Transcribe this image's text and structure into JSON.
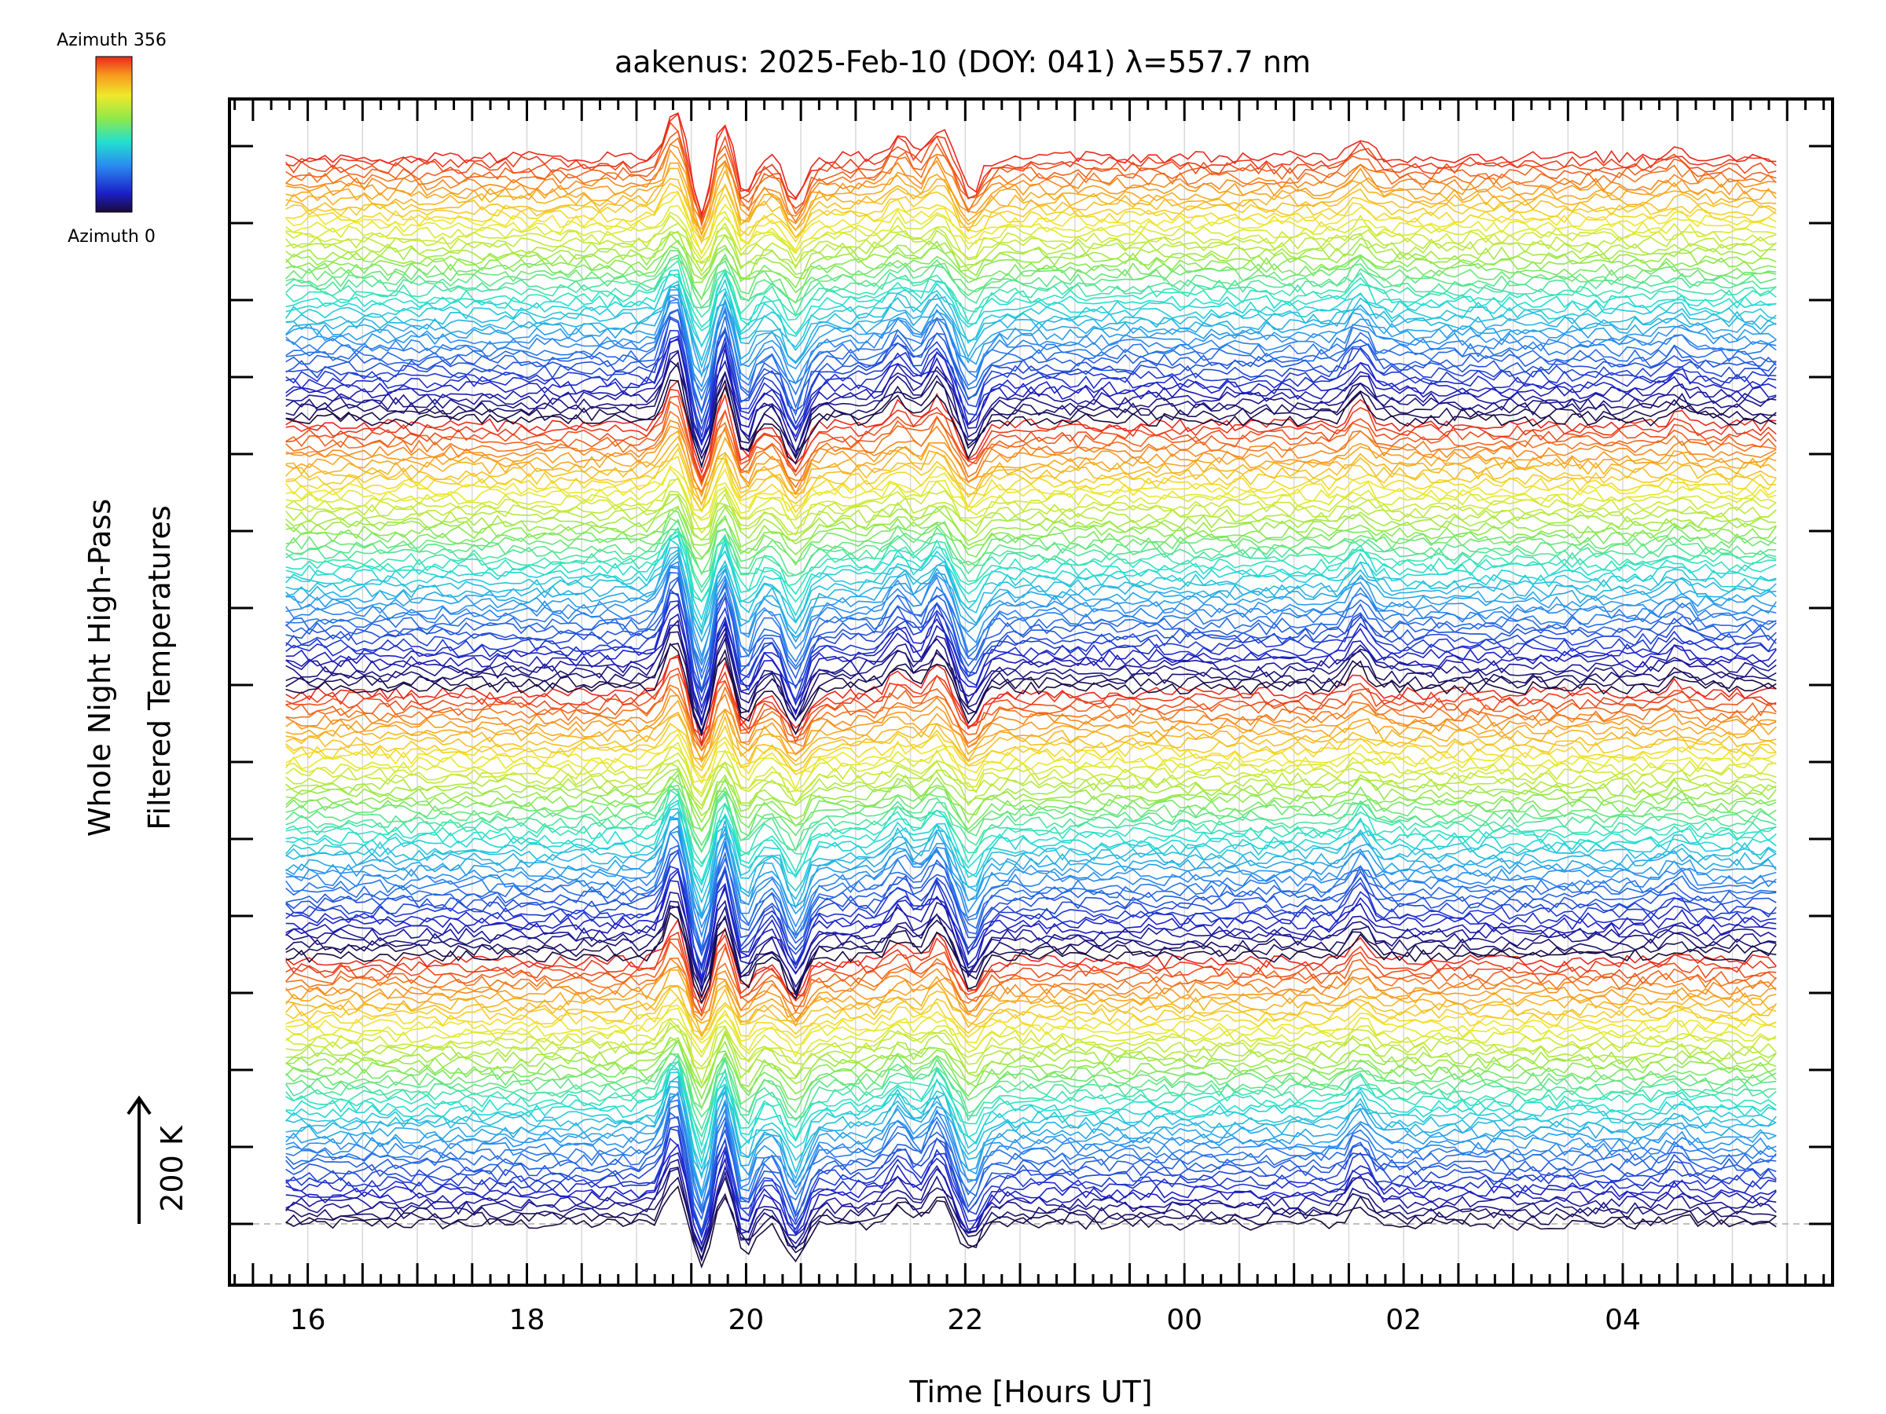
{
  "chart_data": {
    "type": "line",
    "title": "aakenus: 2025-Feb-10 (DOY: 041) λ=557.7 nm",
    "xlabel": "Time [Hours UT]",
    "ylabel_line1": "Whole Night High-Pass",
    "ylabel_line2": "Filtered Temperatures",
    "x_ticks": [
      "16",
      "18",
      "20",
      "22",
      "00",
      "02",
      "04"
    ],
    "x_tick_hours": [
      16,
      18,
      20,
      22,
      24,
      26,
      28
    ],
    "xlim_hours": [
      15.3,
      29.9
    ],
    "x_start_hours": 15.8,
    "x_end_hours": 29.4,
    "scale_bar_label": "200 K",
    "colorbar": {
      "top_label": "Azimuth 356",
      "bottom_label": "Azimuth 0"
    },
    "azimuth_range_deg": [
      0,
      356
    ],
    "series_count": 200,
    "series_description": "Stacked high-pass filtered temperature traces, one per azimuth, offset vertically and colored by azimuth",
    "common_features_hours": [
      {
        "t": 19.35,
        "amp": 1.0
      },
      {
        "t": 19.6,
        "amp": -1.1
      },
      {
        "t": 19.8,
        "amp": 0.9
      },
      {
        "t": 19.97,
        "amp": -0.8
      },
      {
        "t": 20.45,
        "amp": -0.9
      },
      {
        "t": 21.4,
        "amp": 0.45
      },
      {
        "t": 21.75,
        "amp": 0.6
      },
      {
        "t": 22.05,
        "amp": -0.7
      },
      {
        "t": 25.6,
        "amp": 0.45
      },
      {
        "t": 28.5,
        "amp": 0.2
      }
    ]
  }
}
